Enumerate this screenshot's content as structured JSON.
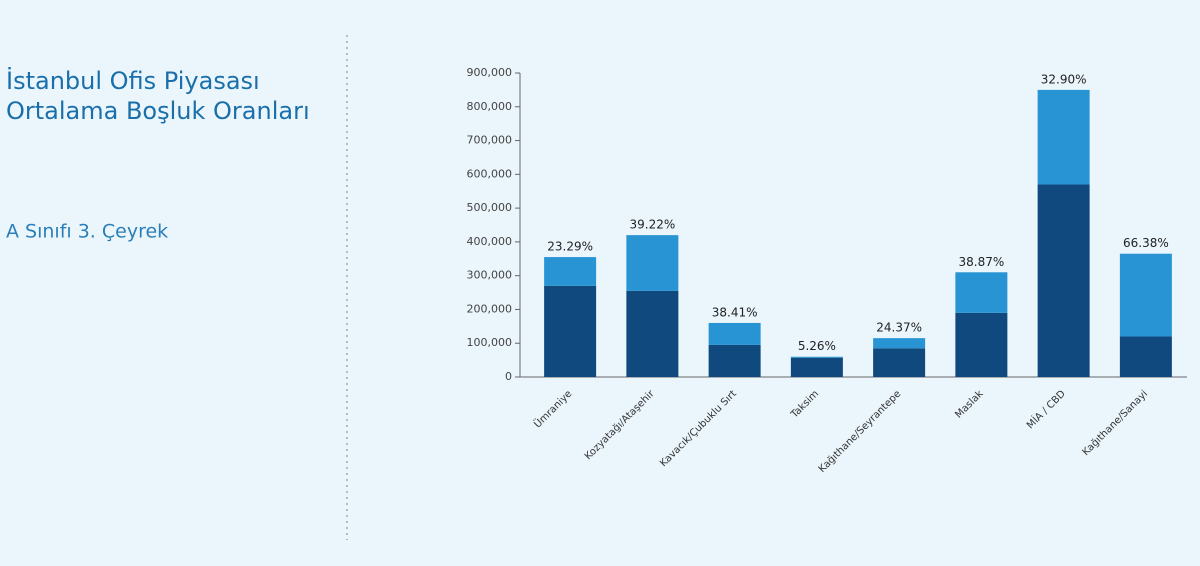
{
  "header": {
    "title_lines": [
      "İstanbul Ofis Piyasası",
      "Ortalama Boşluk Oranları"
    ],
    "subtitle": "A Sınıfı 3. Çeyrek"
  },
  "chart_data": {
    "type": "stacked_bar",
    "categories": [
      "Ümraniye",
      "Kozyatağı/Ataşehir",
      "Kavacık/Çubuklu Sırt",
      "Taksim",
      "Kağıthane/Seyrantepe",
      "Maslak",
      "MİA / CBD",
      "Kağıthane/Sanayi"
    ],
    "series": [
      {
        "color": "#10497d",
        "values": [
          270000,
          255000,
          95000,
          57000,
          85000,
          190000,
          570000,
          120000
        ]
      },
      {
        "color": "#2894d3",
        "values": [
          85000,
          165000,
          65000,
          3000,
          30000,
          120000,
          280000,
          245000
        ]
      }
    ],
    "bar_labels": [
      "23.29%",
      "39.22%",
      "38.41%",
      "5.26%",
      "24.37%",
      "38.87%",
      "32.90%",
      "66.38%"
    ],
    "ylim": [
      0,
      900000
    ],
    "yticks": [
      0,
      {
        "value": 100000,
        "label": "100,000"
      },
      {
        "value": 200000,
        "label": "200,000"
      },
      {
        "value": 300000,
        "label": "300,000"
      },
      {
        "value": 400000,
        "label": "400,000"
      },
      {
        "value": 500000,
        "label": "500,000"
      },
      {
        "value": 600000,
        "label": "600,000"
      },
      {
        "value": 700000,
        "label": "700,000"
      },
      {
        "value": 800000,
        "label": "800,000"
      },
      {
        "value": 900000,
        "label": "900,000"
      }
    ]
  }
}
